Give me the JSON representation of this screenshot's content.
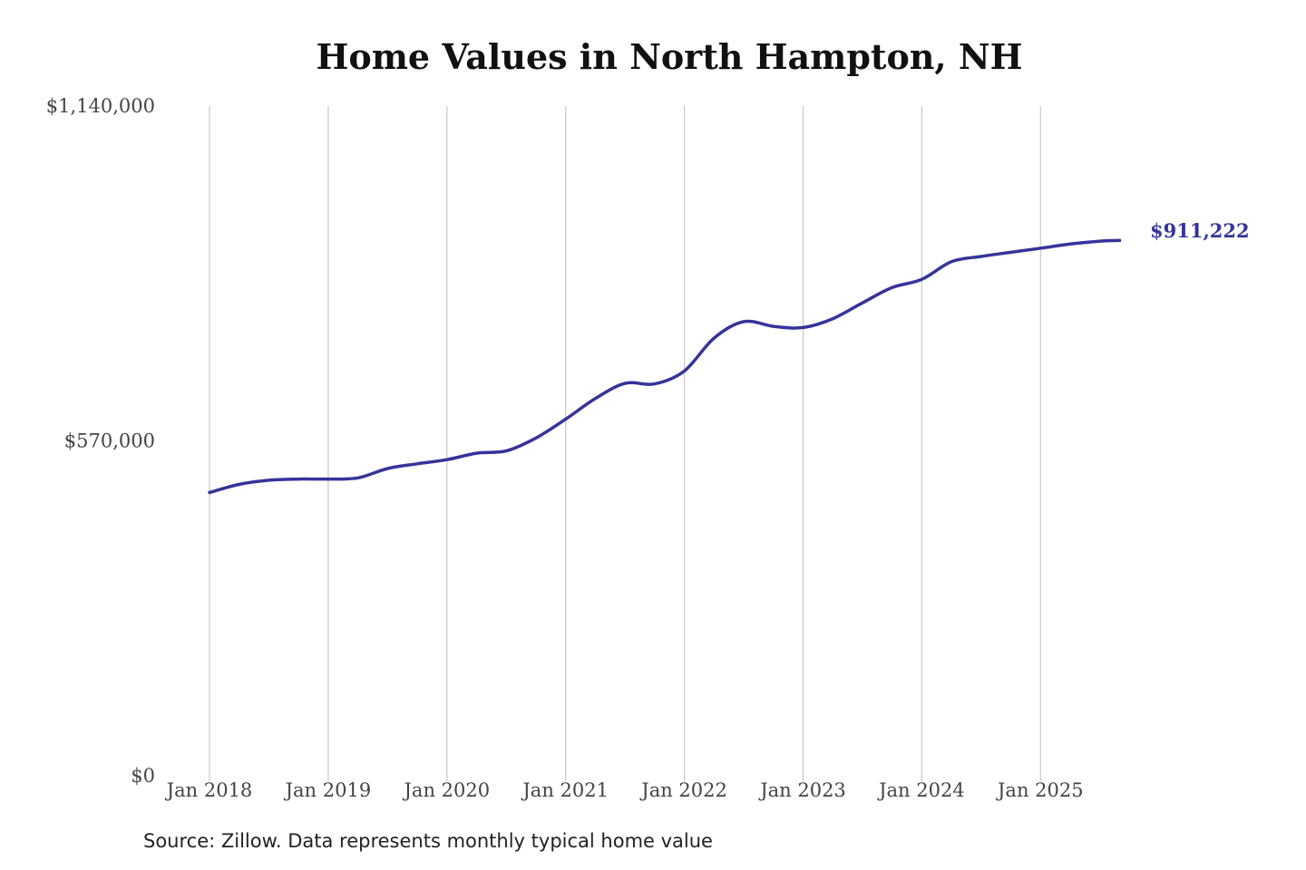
{
  "chart_data": {
    "type": "line",
    "title": "Home Values in North Hampton, NH",
    "xlabel": "",
    "ylabel": "",
    "x_tick_labels": [
      "Jan 2018",
      "Jan 2019",
      "Jan 2020",
      "Jan 2021",
      "Jan 2022",
      "Jan 2023",
      "Jan 2024",
      "Jan 2025"
    ],
    "y_tick_labels": [
      "$1,140,000",
      "$570,000",
      "$0"
    ],
    "ylim": [
      0,
      1140000
    ],
    "xlim": [
      "2018-01",
      "2025-09"
    ],
    "grid": "vertical",
    "legend": "none",
    "line_color": "#35349a",
    "end_label": "$911,222",
    "series": [
      {
        "x": [
          "2018-01",
          "2018-04",
          "2018-07",
          "2018-10",
          "2019-01",
          "2019-04",
          "2019-07",
          "2019-10",
          "2020-01",
          "2020-04",
          "2020-07",
          "2020-10",
          "2021-01",
          "2021-04",
          "2021-07",
          "2021-10",
          "2022-01",
          "2022-04",
          "2022-07",
          "2022-10",
          "2023-01",
          "2023-04",
          "2023-07",
          "2023-10",
          "2024-01",
          "2024-04",
          "2024-07",
          "2024-10",
          "2025-01",
          "2025-04",
          "2025-07",
          "2025-09"
        ],
        "values": [
          482000,
          496000,
          503000,
          505000,
          505000,
          507000,
          523000,
          531000,
          538000,
          549000,
          553000,
          575000,
          607000,
          642000,
          668000,
          667000,
          689000,
          745000,
          773000,
          765000,
          763000,
          778000,
          805000,
          831000,
          845000,
          875000,
          884000,
          891000,
          898000,
          905000,
          910000,
          911222
        ]
      }
    ]
  },
  "footer": {
    "source": "Source: Zillow. Data represents monthly typical home value"
  }
}
